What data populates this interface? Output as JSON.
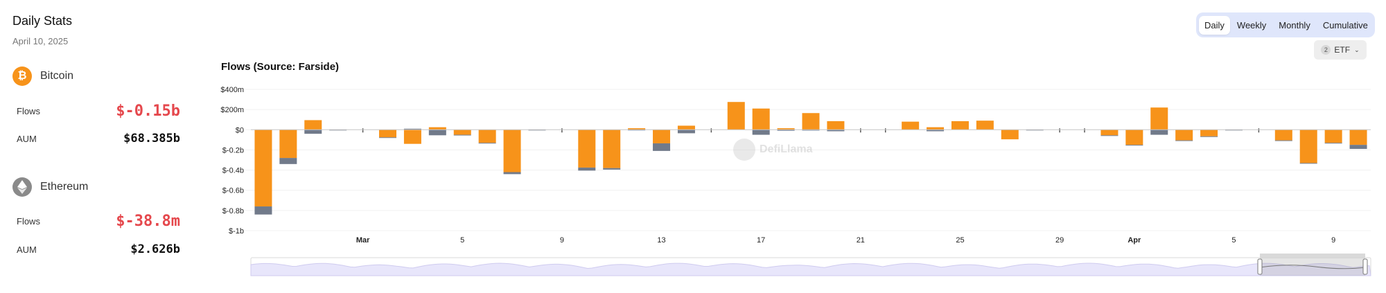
{
  "header": {
    "title": "Daily Stats",
    "date": "April 10, 2025"
  },
  "bitcoin": {
    "name": "Bitcoin",
    "icon": "bitcoin-icon",
    "flows_label": "Flows",
    "flows_value": "$-0.15b",
    "aum_label": "AUM",
    "aum_value": "$68.385b"
  },
  "ethereum": {
    "name": "Ethereum",
    "icon": "ethereum-icon",
    "flows_label": "Flows",
    "flows_value": "$-38.8m",
    "aum_label": "AUM",
    "aum_value": "$2.626b"
  },
  "period_tabs": {
    "options": [
      "Daily",
      "Weekly",
      "Monthly",
      "Cumulative"
    ],
    "selected": "Daily"
  },
  "filter": {
    "count": "2",
    "label": "ETF"
  },
  "watermark": "DefiLlama",
  "colors": {
    "bitcoin": "#f7931a",
    "ethereum": "#717a8a",
    "negative": "#e5484d",
    "segment_bg": "#dfe6fb"
  },
  "chart_data": {
    "type": "bar",
    "title": "Flows (Source: Farside)",
    "stacked": true,
    "ylim": [
      -1000,
      400
    ],
    "yticks": [
      400,
      200,
      0,
      -200,
      -400,
      -600,
      -800,
      -1000
    ],
    "ytick_labels": [
      "$400m",
      "$200m",
      "$0",
      "$-0.2b",
      "$-0.4b",
      "$-0.6b",
      "$-0.8b",
      "$-1b"
    ],
    "grid": true,
    "xtick_labels": [
      {
        "index": 4,
        "label": "Mar",
        "bold": true
      },
      {
        "index": 8,
        "label": "5",
        "bold": false
      },
      {
        "index": 12,
        "label": "9",
        "bold": false
      },
      {
        "index": 16,
        "label": "13",
        "bold": false
      },
      {
        "index": 20,
        "label": "17",
        "bold": false
      },
      {
        "index": 24,
        "label": "21",
        "bold": false
      },
      {
        "index": 28,
        "label": "25",
        "bold": false
      },
      {
        "index": 32,
        "label": "29",
        "bold": false
      },
      {
        "index": 35,
        "label": "Apr",
        "bold": true
      },
      {
        "index": 39,
        "label": "5",
        "bold": false
      },
      {
        "index": 43,
        "label": "9",
        "bold": false
      }
    ],
    "series": [
      {
        "name": "Bitcoin",
        "color": "#f7931a",
        "values": [
          -760,
          -280,
          95,
          0,
          0,
          -75,
          -140,
          25,
          -50,
          -130,
          -420,
          0,
          0,
          -375,
          -380,
          15,
          -135,
          40,
          0,
          275,
          210,
          15,
          165,
          85,
          0,
          0,
          80,
          25,
          85,
          90,
          -95,
          0,
          0,
          0,
          -55,
          -150,
          220,
          -105,
          -65,
          0,
          0,
          -105,
          -330,
          -130,
          -150
        ]
      },
      {
        "name": "Ethereum",
        "color": "#717a8a",
        "values": [
          -80,
          -60,
          -40,
          -6,
          0,
          -5,
          10,
          -55,
          -5,
          -5,
          -20,
          -4,
          0,
          -30,
          -15,
          -5,
          -75,
          -35,
          0,
          0,
          -50,
          -10,
          -8,
          -15,
          0,
          0,
          0,
          -15,
          0,
          0,
          0,
          -5,
          0,
          0,
          -5,
          -5,
          -50,
          -5,
          -5,
          -5,
          0,
          -5,
          -5,
          -5,
          -40
        ]
      }
    ]
  }
}
